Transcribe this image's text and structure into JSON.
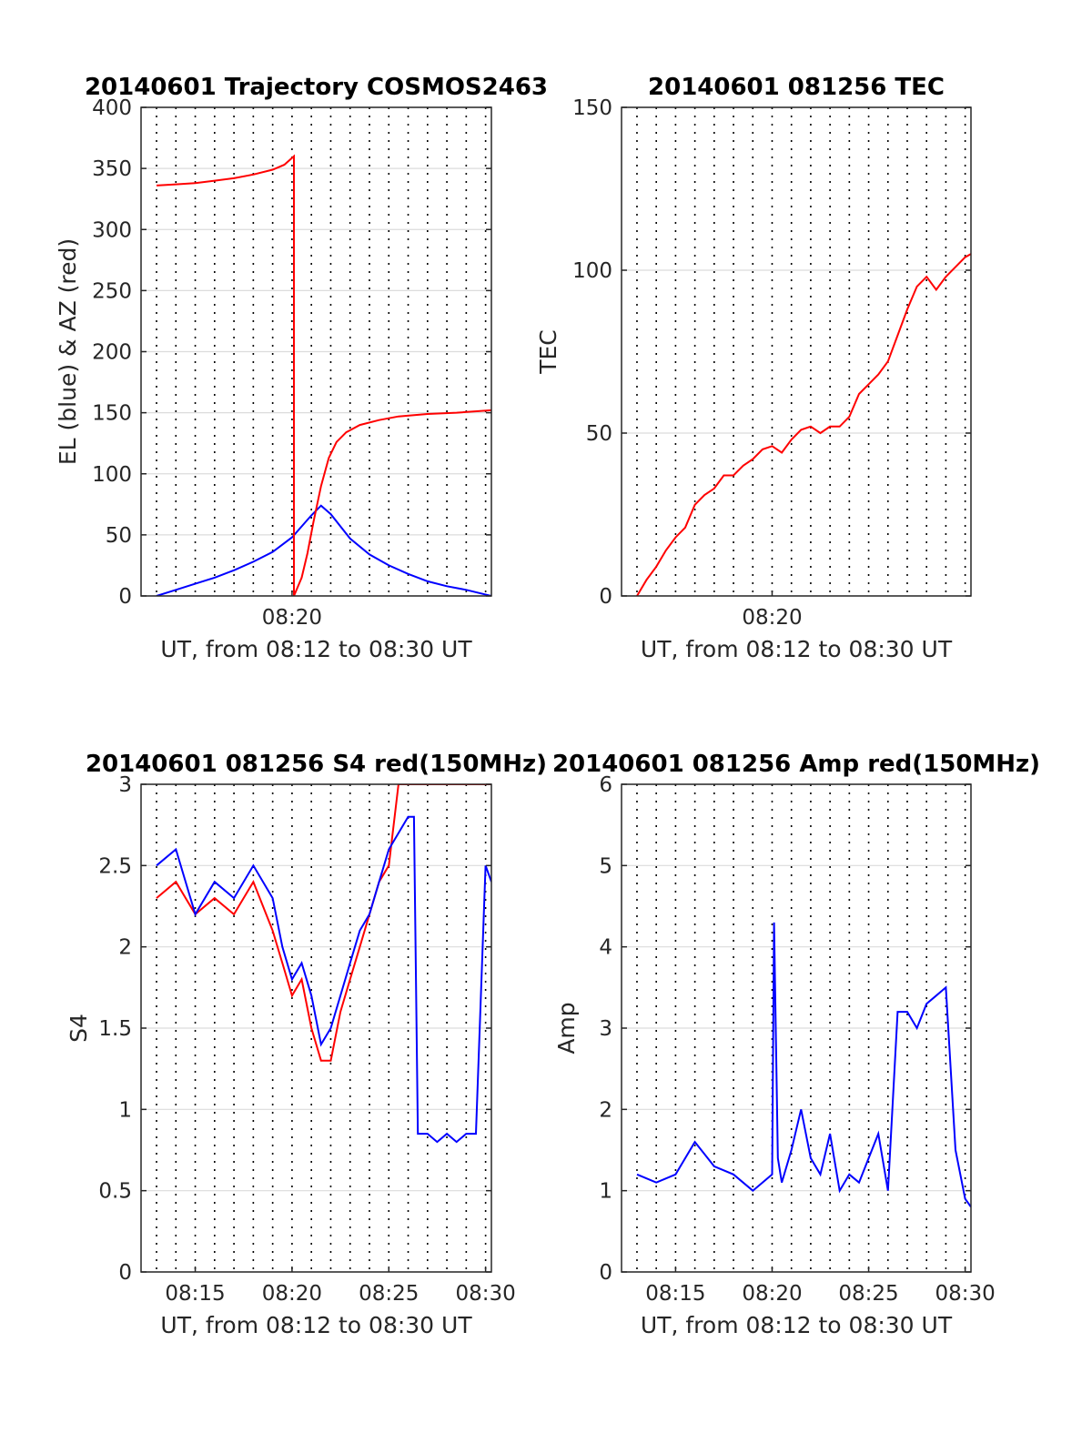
{
  "colors": {
    "el": "#0000ff",
    "az": "#ff0000"
  },
  "chart_data": [
    {
      "type": "line",
      "title": "20140601 Trajectory COSMOS2463",
      "xlabel": "UT, from 08:12 to 08:30 UT",
      "ylabel": "EL (blue) & AZ (red)",
      "xlim_min": [
        12.2,
        30.3
      ],
      "ylim": [
        0,
        400
      ],
      "yticks": [
        0,
        50,
        100,
        150,
        200,
        250,
        300,
        350,
        400
      ],
      "xticks": [
        {
          "v": 20,
          "label": "08:20"
        }
      ],
      "grid": true,
      "series": [
        {
          "name": "EL (blue)",
          "color": "#0000ff",
          "x": [
            13.0,
            14.0,
            15.0,
            16.0,
            17.0,
            18.0,
            19.0,
            20.0,
            21.0,
            21.5,
            22.0,
            23.0,
            24.0,
            25.0,
            26.0,
            27.0,
            28.0,
            29.0,
            30.3
          ],
          "y": [
            0,
            5,
            10,
            15,
            21,
            28,
            36,
            48,
            66,
            74,
            67,
            47,
            34,
            25,
            18,
            12,
            8,
            5,
            0
          ]
        },
        {
          "name": "AZ (red)",
          "color": "#ff0000",
          "x": [
            13.0,
            14.0,
            15.0,
            16.0,
            17.0,
            18.0,
            19.0,
            19.6,
            20.1,
            20.1,
            20.5,
            20.8,
            21.1,
            21.5,
            21.9,
            22.3,
            22.8,
            23.5,
            24.5,
            25.5,
            27.0,
            28.5,
            30.3
          ],
          "y": [
            336,
            337,
            338,
            340,
            342,
            345,
            349,
            353,
            360,
            0,
            15,
            35,
            60,
            90,
            113,
            126,
            134,
            140,
            144,
            147,
            149,
            150,
            152
          ]
        }
      ]
    },
    {
      "type": "line",
      "title": "20140601 081256 TEC",
      "xlabel": "UT, from 08:12 to 08:30 UT",
      "ylabel": "TEC",
      "xlim_min": [
        12.2,
        30.3
      ],
      "ylim": [
        0,
        150
      ],
      "yticks": [
        0,
        50,
        100,
        150
      ],
      "xticks": [
        {
          "v": 20,
          "label": "08:20"
        }
      ],
      "grid": true,
      "series": [
        {
          "name": "TEC",
          "color": "#ff0000",
          "x": [
            13.0,
            13.5,
            14.0,
            14.5,
            15.0,
            15.5,
            16.0,
            16.5,
            17.0,
            17.5,
            18.0,
            18.5,
            19.0,
            19.5,
            20.0,
            20.5,
            21.0,
            21.5,
            22.0,
            22.5,
            23.0,
            23.5,
            24.0,
            24.5,
            25.0,
            25.5,
            26.0,
            26.5,
            27.0,
            27.5,
            28.0,
            28.5,
            29.0,
            29.5,
            30.0,
            30.3
          ],
          "y": [
            0,
            5,
            9,
            14,
            18,
            21,
            28,
            31,
            33,
            37,
            37,
            40,
            42,
            45,
            46,
            44,
            48,
            51,
            52,
            50,
            52,
            52,
            55,
            62,
            65,
            68,
            72,
            80,
            88,
            95,
            98,
            94,
            98,
            101,
            104,
            105
          ]
        }
      ]
    },
    {
      "type": "line",
      "title": "20140601 081256 S4 red(150MHz)",
      "xlabel": "UT, from 08:12 to 08:30 UT",
      "ylabel": "S4",
      "xlim_min": [
        12.2,
        30.3
      ],
      "ylim": [
        0,
        3
      ],
      "yticks": [
        0,
        0.5,
        1,
        1.5,
        2,
        2.5,
        3
      ],
      "xticks": [
        {
          "v": 15,
          "label": "08:15"
        },
        {
          "v": 20,
          "label": "08:20"
        },
        {
          "v": 25,
          "label": "08:25"
        },
        {
          "v": 30,
          "label": "08:30"
        }
      ],
      "grid": true,
      "series": [
        {
          "name": "red",
          "color": "#ff0000",
          "x": [
            13.0,
            14.0,
            15.0,
            16.0,
            17.0,
            18.0,
            19.0,
            19.5,
            20.0,
            20.5,
            21.0,
            21.5,
            22.0,
            22.5,
            23.0,
            23.5,
            24.0,
            24.5,
            25.0,
            25.5,
            26.0,
            26.5,
            27.0,
            27.5,
            28.0,
            28.5,
            29.0,
            29.5,
            30.0,
            30.3
          ],
          "y": [
            2.3,
            2.4,
            2.2,
            2.3,
            2.2,
            2.4,
            2.1,
            1.9,
            1.7,
            1.8,
            1.5,
            1.3,
            1.3,
            1.6,
            1.8,
            2.0,
            2.2,
            2.4,
            2.5,
            3.0,
            3.0,
            3.0,
            3.0,
            3.0,
            3.0,
            3.0,
            3.0,
            3.0,
            3.0,
            3.0
          ]
        },
        {
          "name": "blue",
          "color": "#0000ff",
          "x": [
            13.0,
            14.0,
            15.0,
            16.0,
            17.0,
            18.0,
            19.0,
            19.5,
            20.0,
            20.5,
            21.0,
            21.5,
            22.0,
            22.5,
            23.0,
            23.5,
            24.0,
            24.5,
            25.0,
            25.5,
            26.0,
            26.3,
            26.5,
            27.0,
            27.5,
            28.0,
            28.5,
            29.0,
            29.5,
            30.0,
            30.3
          ],
          "y": [
            2.5,
            2.6,
            2.2,
            2.4,
            2.3,
            2.5,
            2.3,
            2.0,
            1.8,
            1.9,
            1.7,
            1.4,
            1.5,
            1.7,
            1.9,
            2.1,
            2.2,
            2.4,
            2.6,
            2.7,
            2.8,
            2.8,
            0.85,
            0.85,
            0.8,
            0.85,
            0.8,
            0.85,
            0.85,
            2.5,
            2.4
          ]
        }
      ]
    },
    {
      "type": "line",
      "title": "20140601 081256 Amp red(150MHz)",
      "xlabel": "UT, from 08:12 to 08:30 UT",
      "ylabel": "Amp",
      "xlim_min": [
        12.2,
        30.3
      ],
      "ylim": [
        0,
        6
      ],
      "yticks": [
        0,
        1,
        2,
        3,
        4,
        5,
        6
      ],
      "xticks": [
        {
          "v": 15,
          "label": "08:15"
        },
        {
          "v": 20,
          "label": "08:20"
        },
        {
          "v": 25,
          "label": "08:25"
        },
        {
          "v": 30,
          "label": "08:30"
        }
      ],
      "grid": true,
      "series": [
        {
          "name": "Amp",
          "color": "#0000ff",
          "x": [
            13.0,
            14.0,
            15.0,
            16.0,
            17.0,
            18.0,
            19.0,
            19.5,
            20.0,
            20.1,
            20.3,
            20.5,
            21.0,
            21.5,
            22.0,
            22.5,
            23.0,
            23.5,
            24.0,
            24.5,
            25.0,
            25.5,
            26.0,
            26.5,
            27.0,
            27.5,
            28.0,
            28.5,
            29.0,
            29.5,
            30.0,
            30.3
          ],
          "y": [
            1.2,
            1.1,
            1.2,
            1.6,
            1.3,
            1.2,
            1.0,
            1.1,
            1.2,
            4.3,
            1.4,
            1.1,
            1.5,
            2.0,
            1.4,
            1.2,
            1.7,
            1.0,
            1.2,
            1.1,
            1.4,
            1.7,
            1.0,
            3.2,
            3.2,
            3.0,
            3.3,
            3.4,
            3.5,
            1.5,
            0.9,
            0.8
          ]
        }
      ]
    }
  ]
}
